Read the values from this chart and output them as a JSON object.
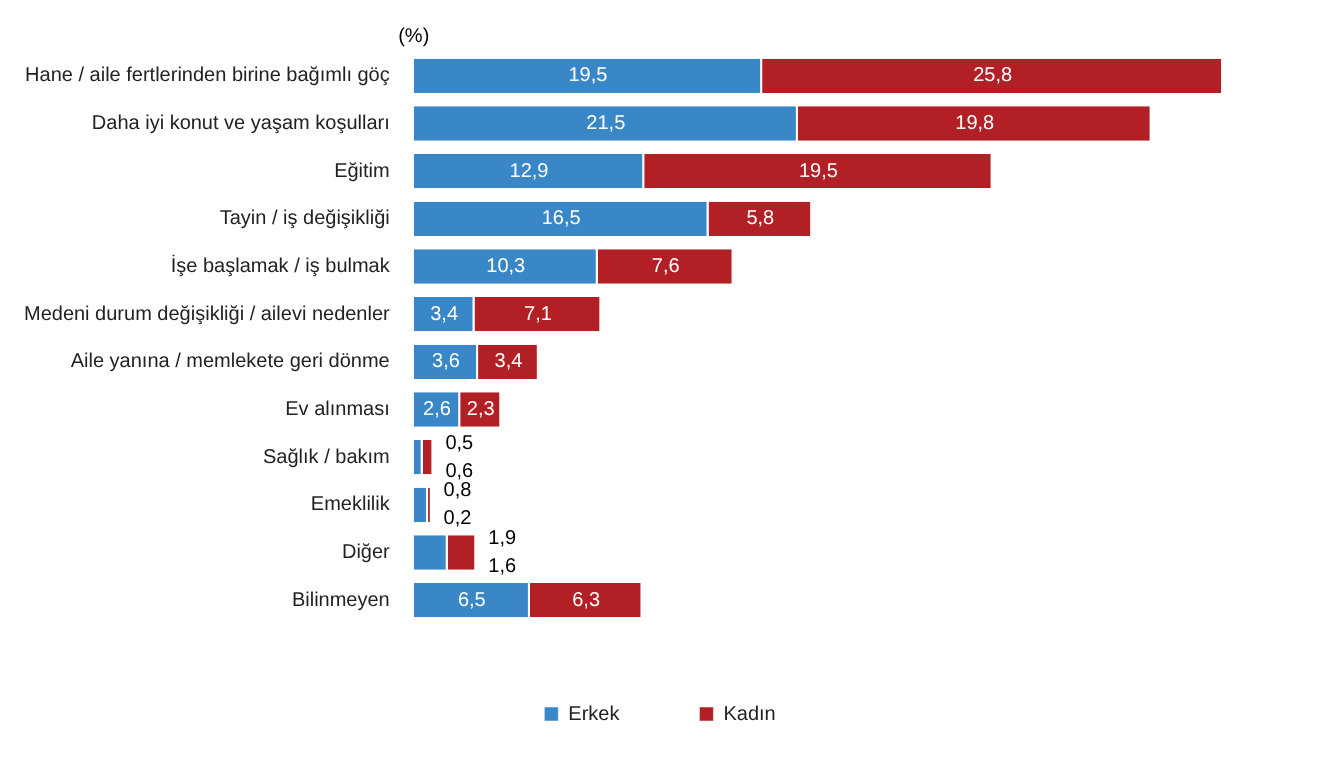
{
  "chart_data": {
    "type": "bar",
    "orientation": "horizontal",
    "stacked": true,
    "xlabel": "(%)",
    "legend": "bottom",
    "grid": false,
    "categories": [
      "Hane / aile fertlerinden birine bağımlı göç",
      "Daha iyi konut ve yaşam koşulları",
      "Eğitim",
      "Tayin / iş değişikliği",
      "İşe başlamak / iş bulmak",
      "Medeni durum değişikliği / ailevi nedenler",
      "Aile yanına / memlekete geri dönme",
      "Ev alınması",
      "Sağlık / bakım",
      "Emeklilik",
      "Diğer",
      "Bilinmeyen"
    ],
    "series": [
      {
        "name": "Erkek",
        "color": "#3a87c8",
        "values": [
          19.5,
          21.5,
          12.9,
          16.5,
          10.3,
          3.4,
          3.6,
          2.6,
          0.5,
          0.8,
          1.9,
          6.5
        ],
        "value_labels": [
          "19,5",
          "21,5",
          "12,9",
          "16,5",
          "10,3",
          "3,4",
          "3,6",
          "2,6",
          "0,5",
          "0,8",
          "1,9",
          "6,5"
        ]
      },
      {
        "name": "Kadın",
        "color": "#b22025",
        "values": [
          25.8,
          19.8,
          19.5,
          5.8,
          7.6,
          7.1,
          3.4,
          2.3,
          0.6,
          0.2,
          1.6,
          6.3
        ],
        "value_labels": [
          "25,8",
          "19,8",
          "19,5",
          "5,8",
          "7,6",
          "7,1",
          "3,4",
          "2,3",
          "0,6",
          "0,2",
          "1,6",
          "6,3"
        ]
      }
    ]
  }
}
